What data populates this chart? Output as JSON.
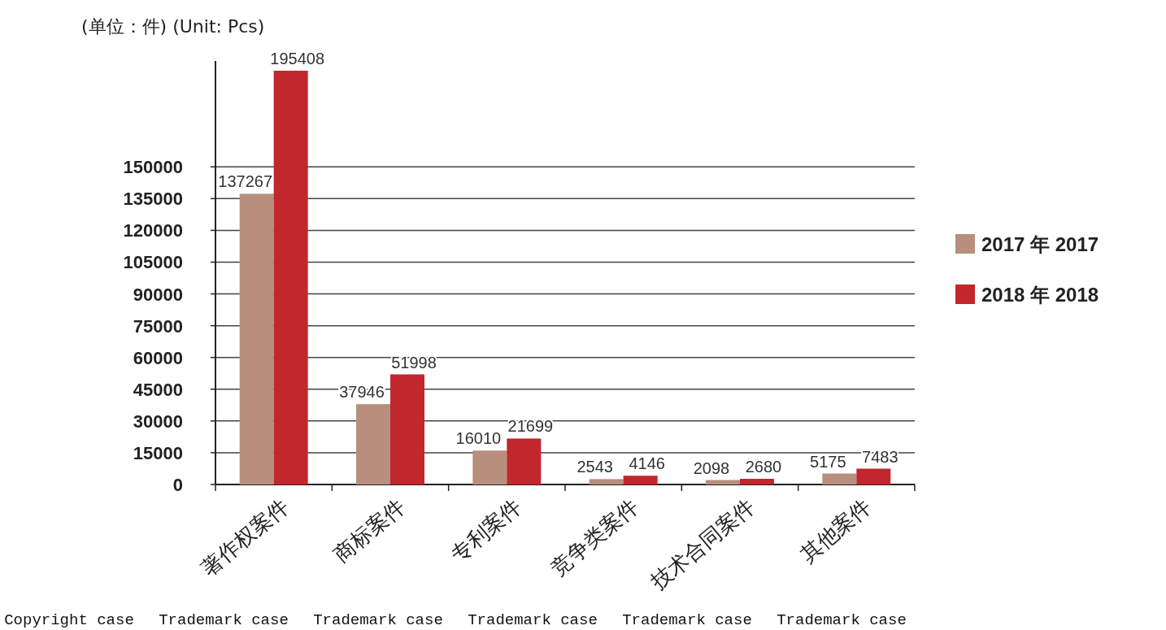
{
  "chart_data": {
    "type": "bar",
    "ylabel": "(单位：件)  (Unit: Pcs)",
    "categories": [
      "著作权案件",
      "商标案件",
      "专利案件",
      "竞争类案件",
      "技术合同案件",
      "其他案件"
    ],
    "series": [
      {
        "name": "2017 年  2017",
        "color": "#b88e7c",
        "values": [
          137267,
          37946,
          16010,
          2543,
          2098,
          5175
        ]
      },
      {
        "name": "2018 年  2018",
        "color": "#c1272d",
        "values": [
          195408,
          51998,
          21699,
          4146,
          2680,
          7483
        ]
      }
    ],
    "data_labels": true,
    "ylim": [
      0,
      200000
    ],
    "yticks": [
      0,
      15000,
      30000,
      45000,
      60000,
      75000,
      90000,
      105000,
      120000,
      135000,
      150000
    ],
    "grid": "y",
    "legend": "right",
    "annotations": [
      "Copyright case",
      "Trademark case",
      "Trademark case",
      "Trademark case",
      "Trademark case",
      "Trademark case"
    ]
  }
}
